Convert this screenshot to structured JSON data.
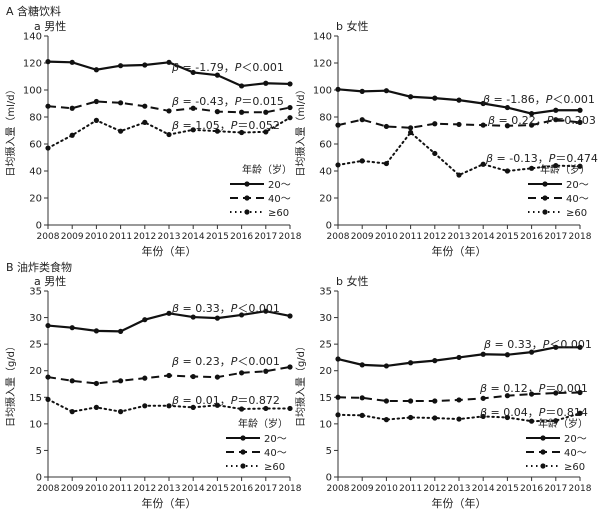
{
  "figure": {
    "sections": [
      {
        "id": "A",
        "label": "A 含糖饮料"
      },
      {
        "id": "B",
        "label": "B 油炸类食物"
      }
    ],
    "legend_title": "年龄（岁）",
    "xlabel": "年份（年）"
  },
  "chart_data": [
    {
      "id": "A-a",
      "type": "line",
      "section": "A",
      "subtitle": "a 男性",
      "xlabel": "年份（年）",
      "ylabel": "日均摄入量（ml/d）",
      "x": [
        2008,
        2009,
        2010,
        2011,
        2012,
        2013,
        2014,
        2015,
        2016,
        2017,
        2018
      ],
      "xlim": [
        2008,
        2018
      ],
      "ylim": [
        0,
        140
      ],
      "yticks": [
        0,
        20,
        40,
        60,
        80,
        100,
        120,
        140
      ],
      "legend": {
        "title": "年龄（岁）",
        "position": "bottom-right"
      },
      "series": [
        {
          "name": "20～",
          "style": "solid",
          "values": [
            121,
            120.5,
            115,
            118,
            118.5,
            120.5,
            113,
            111,
            103,
            105,
            104.5
          ],
          "annotation": {
            "beta": "-1.79",
            "p": "P＜0.001"
          }
        },
        {
          "name": "40～",
          "style": "dashed",
          "values": [
            88,
            86.5,
            91.5,
            90.5,
            88,
            84.5,
            86.5,
            84,
            83.5,
            83.5,
            87
          ],
          "annotation": {
            "beta": "-0.43",
            "p": "P＝0.015"
          }
        },
        {
          "name": "≥60",
          "style": "dotted",
          "values": [
            57,
            66.5,
            77.5,
            69.5,
            76,
            67,
            70.5,
            69.5,
            68.5,
            69,
            79.5
          ],
          "annotation": {
            "beta": "1.05",
            "p": "P＝0.052"
          }
        }
      ]
    },
    {
      "id": "A-b",
      "type": "line",
      "section": "A",
      "subtitle": "b 女性",
      "xlabel": "年份（年）",
      "ylabel": "日均摄入量（ml/d）",
      "x": [
        2008,
        2009,
        2010,
        2011,
        2012,
        2013,
        2014,
        2015,
        2016,
        2017,
        2018
      ],
      "xlim": [
        2008,
        2018
      ],
      "ylim": [
        0,
        140
      ],
      "yticks": [
        0,
        20,
        40,
        60,
        80,
        100,
        120,
        140
      ],
      "legend": {
        "title": "年龄（岁）",
        "position": "bottom-right"
      },
      "series": [
        {
          "name": "20～",
          "style": "solid",
          "values": [
            100.5,
            99,
            99.5,
            95,
            94,
            92.5,
            90,
            87,
            82.5,
            85,
            85
          ],
          "annotation": {
            "beta": "-1.86",
            "p": "P＜0.001"
          }
        },
        {
          "name": "40～",
          "style": "dashed",
          "values": [
            74,
            78,
            73,
            72,
            75,
            74.5,
            74,
            73.5,
            74,
            78,
            76
          ],
          "annotation": {
            "beta": "0.22",
            "p": "P＝0.203"
          }
        },
        {
          "name": "≥60",
          "style": "dotted",
          "values": [
            44.5,
            47.5,
            45.5,
            68.5,
            53,
            37,
            45,
            40,
            42,
            44,
            43.5
          ],
          "annotation": {
            "beta": "-0.13",
            "p": "P＝0.474"
          }
        }
      ]
    },
    {
      "id": "B-a",
      "type": "line",
      "section": "B",
      "subtitle": "a 男性",
      "xlabel": "年份（年）",
      "ylabel": "日均摄入量（g/d）",
      "x": [
        2008,
        2009,
        2010,
        2011,
        2012,
        2013,
        2014,
        2015,
        2016,
        2017,
        2018
      ],
      "xlim": [
        2008,
        2018
      ],
      "ylim": [
        0,
        35
      ],
      "yticks": [
        0,
        5,
        10,
        15,
        20,
        25,
        30,
        35
      ],
      "legend": {
        "title": "年龄（岁）",
        "position": "bottom-right"
      },
      "series": [
        {
          "name": "20～",
          "style": "solid",
          "values": [
            28.5,
            28.1,
            27.5,
            27.4,
            29.6,
            30.8,
            30.1,
            29.9,
            30.5,
            31.2,
            30.3
          ],
          "annotation": {
            "beta": "0.33",
            "p": "P＜0.001"
          }
        },
        {
          "name": "40～",
          "style": "dashed",
          "values": [
            18.8,
            18.1,
            17.6,
            18.1,
            18.6,
            19.1,
            18.9,
            18.8,
            19.6,
            19.9,
            20.7
          ],
          "annotation": {
            "beta": "0.23",
            "p": "P＜0.001"
          }
        },
        {
          "name": "≥60",
          "style": "dotted",
          "values": [
            14.6,
            12.3,
            13.1,
            12.3,
            13.4,
            13.4,
            13.1,
            13.5,
            12.8,
            12.9,
            12.9
          ],
          "annotation": {
            "beta": "0.01",
            "p": "P＝0.872"
          }
        }
      ]
    },
    {
      "id": "B-b",
      "type": "line",
      "section": "B",
      "subtitle": "b 女性",
      "xlabel": "年份（年）",
      "ylabel": "日均摄入量（g/d）",
      "x": [
        2008,
        2009,
        2010,
        2011,
        2012,
        2013,
        2014,
        2015,
        2016,
        2017,
        2018
      ],
      "xlim": [
        2008,
        2018
      ],
      "ylim": [
        0,
        35
      ],
      "yticks": [
        0,
        5,
        10,
        15,
        20,
        25,
        30,
        35
      ],
      "legend": {
        "title": "年龄（岁）",
        "position": "bottom-right"
      },
      "series": [
        {
          "name": "20～",
          "style": "solid",
          "values": [
            22.2,
            21.1,
            20.9,
            21.5,
            21.9,
            22.5,
            23.1,
            23.0,
            23.5,
            24.4,
            24.4
          ],
          "annotation": {
            "beta": "0.33",
            "p": "P＜0.001"
          }
        },
        {
          "name": "40～",
          "style": "dashed",
          "values": [
            15.0,
            14.9,
            14.3,
            14.3,
            14.3,
            14.5,
            14.8,
            15.3,
            15.6,
            15.8,
            15.9
          ],
          "annotation": {
            "beta": "0.12",
            "p": "P＝0.001"
          }
        },
        {
          "name": "≥60",
          "style": "dotted",
          "values": [
            11.7,
            11.6,
            10.8,
            11.2,
            11.1,
            10.9,
            11.4,
            11.2,
            10.5,
            10.6,
            12.0
          ],
          "annotation": {
            "beta": "0.04",
            "p": "P＝0.814"
          }
        }
      ]
    }
  ]
}
